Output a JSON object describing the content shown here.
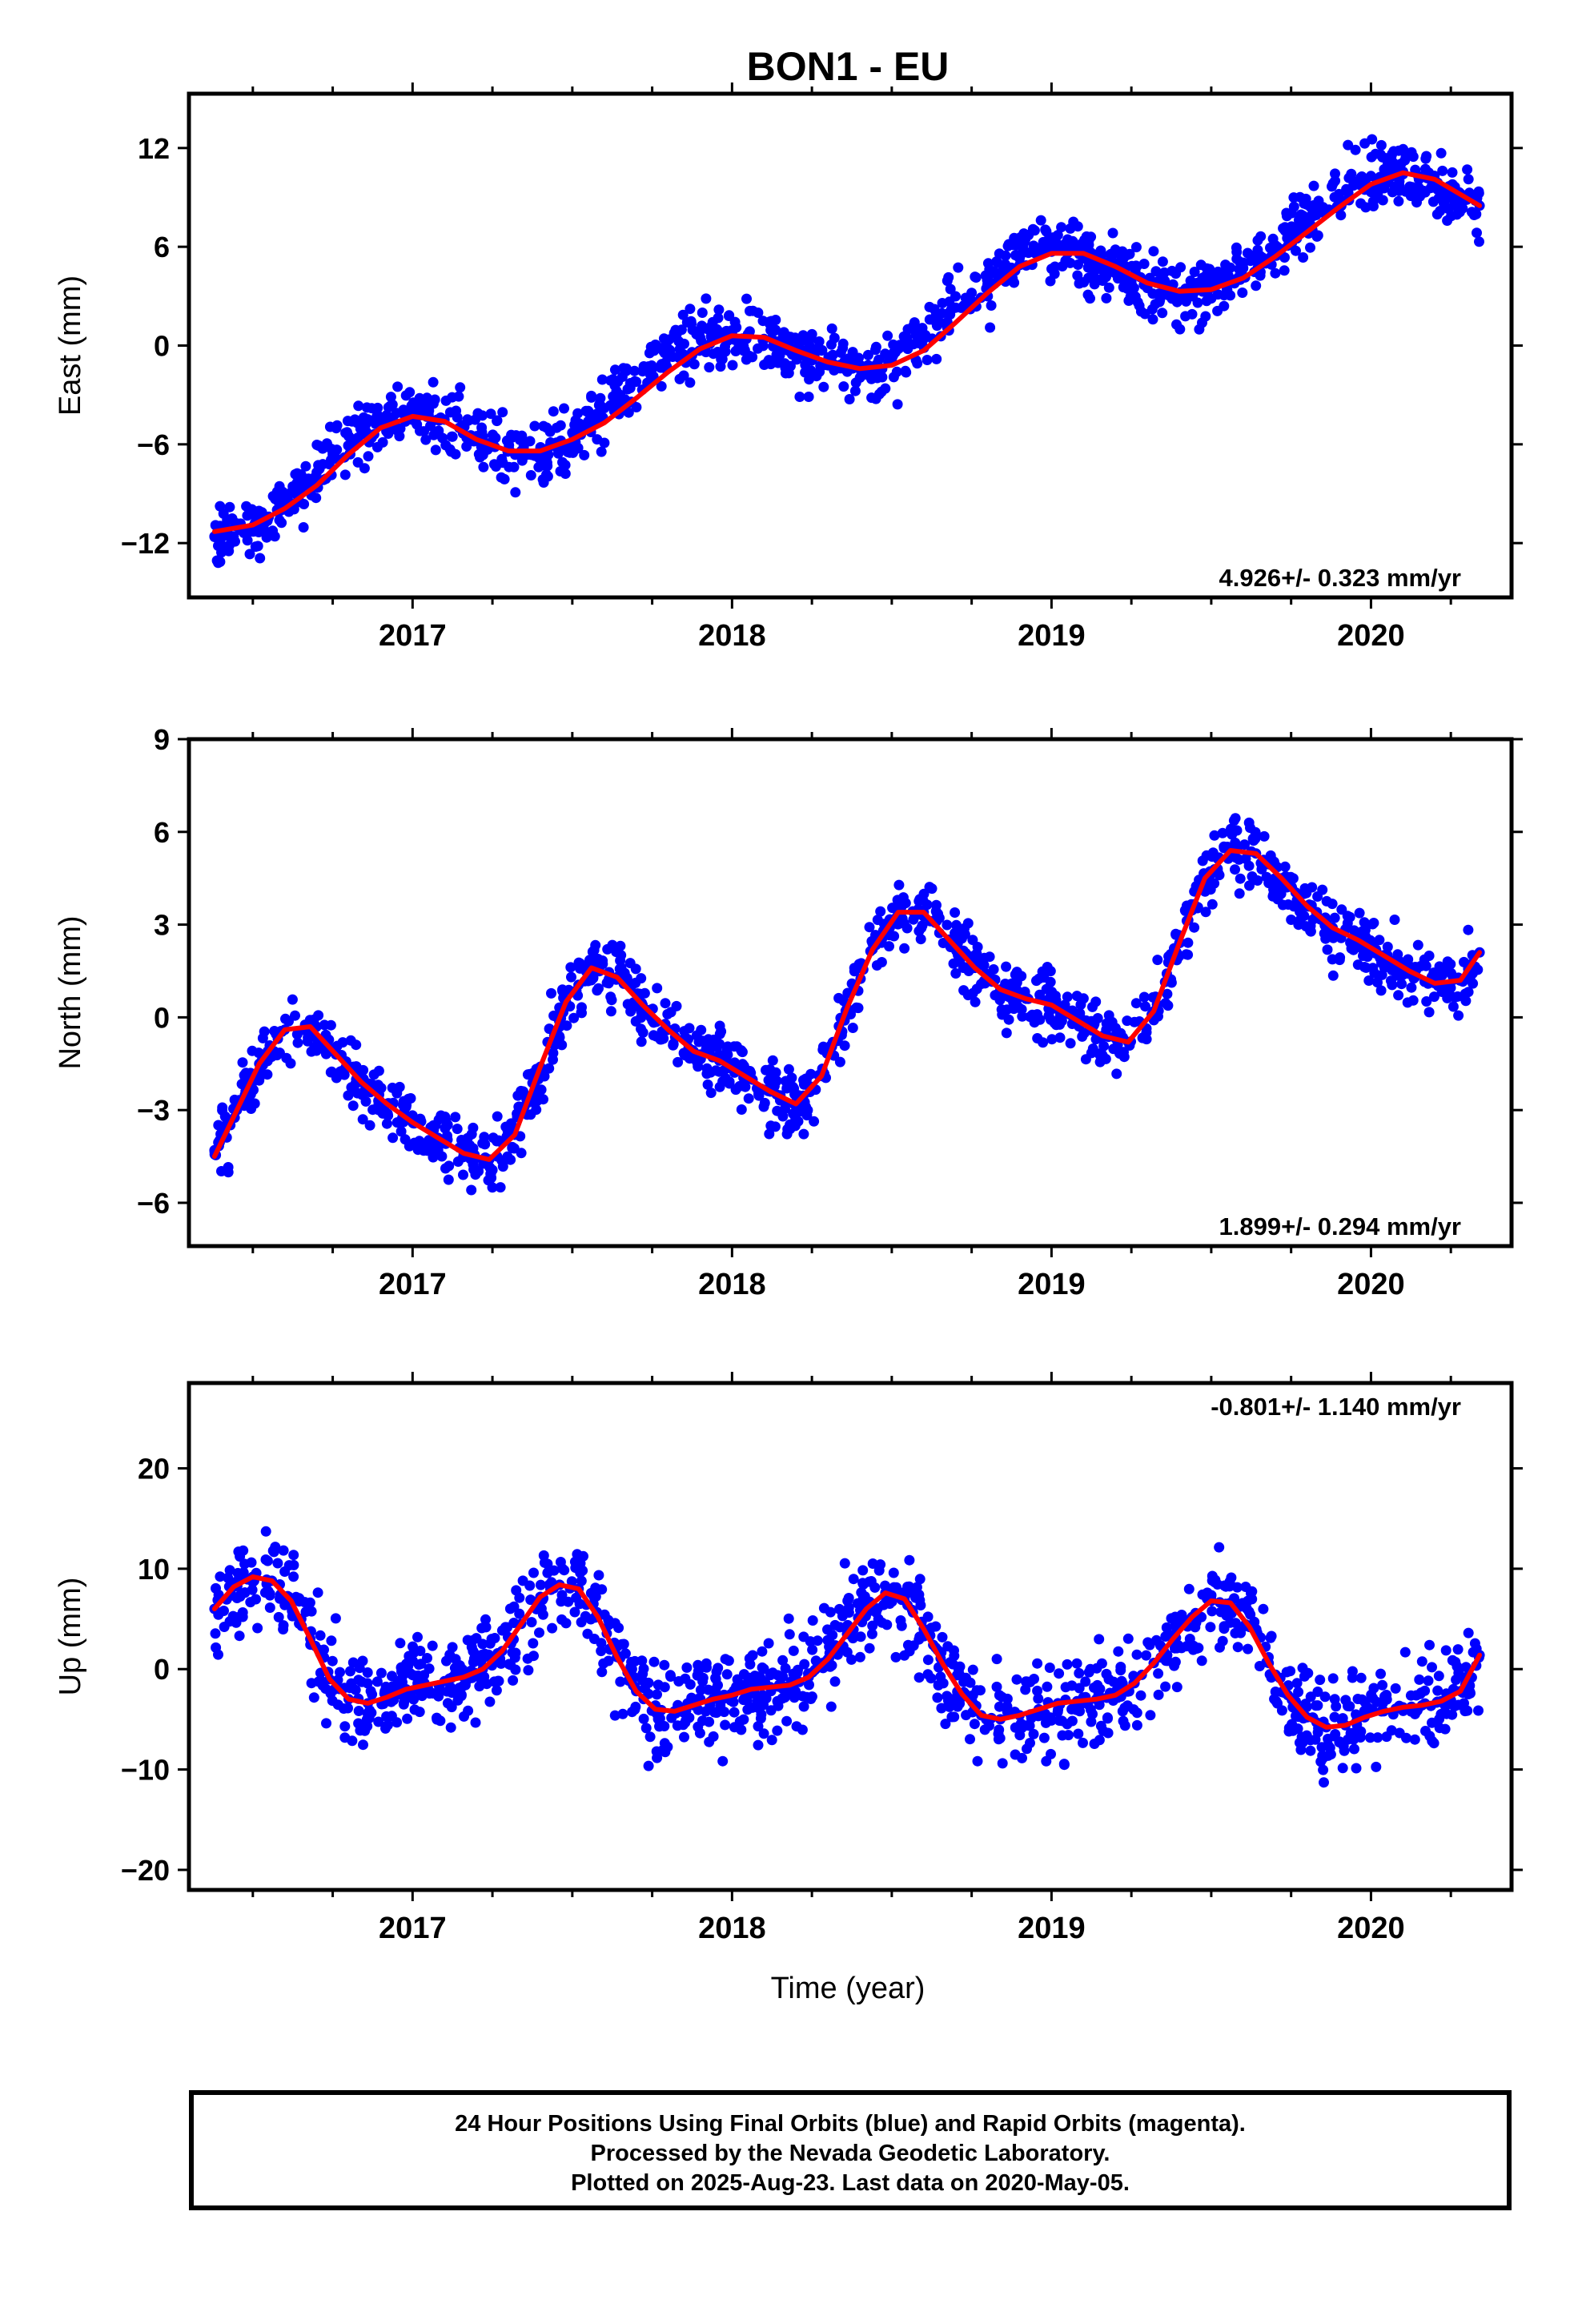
{
  "title": "BON1 - EU",
  "colors": {
    "final_orbits": "#0000ff",
    "fit": "#ff0000",
    "frame": "#000000"
  },
  "x_axis": {
    "label": "Time (year)",
    "ticks": [
      "2017",
      "2018",
      "2019",
      "2020"
    ]
  },
  "footer": {
    "line1": "24 Hour Positions Using Final Orbits (blue) and Rapid Orbits (magenta).",
    "line2": "Processed by the Nevada Geodetic Laboratory.",
    "line3": "Plotted on 2025-Aug-23. Last data on 2020-May-05."
  },
  "chart_data": [
    {
      "type": "scatter",
      "ylabel": "East (mm)",
      "rate_label": "4.926+/- 0.323 mm/yr",
      "xlim": [
        2016.3,
        2020.44
      ],
      "ylim": [
        -15.3,
        15.3
      ],
      "xticks": [
        2017,
        2018,
        2019,
        2020
      ],
      "yticks": [
        -12,
        -6,
        0,
        6,
        12
      ],
      "series": [
        {
          "type": "scatter",
          "x": [
            2016.38,
            2016.42,
            2016.46,
            2016.5,
            2016.55,
            2016.6,
            2016.65,
            2016.7,
            2016.75,
            2016.8,
            2016.85,
            2016.9,
            2016.95,
            2017.0,
            2017.05,
            2017.1,
            2017.15,
            2017.2,
            2017.25,
            2017.3,
            2017.35,
            2017.4,
            2017.45,
            2017.5,
            2017.55,
            2017.6,
            2017.65,
            2017.7,
            2017.75,
            2017.8,
            2017.85,
            2017.9,
            2017.95,
            2018.0,
            2018.05,
            2018.1,
            2018.15,
            2018.2,
            2018.25,
            2018.3,
            2018.35,
            2018.4,
            2018.45,
            2018.5,
            2018.55,
            2018.6,
            2018.65,
            2018.7,
            2018.75,
            2018.8,
            2018.85,
            2018.9,
            2018.95,
            2019.0,
            2019.05,
            2019.1,
            2019.15,
            2019.2,
            2019.25,
            2019.3,
            2019.35,
            2019.4,
            2019.45,
            2019.5,
            2019.55,
            2019.6,
            2019.65,
            2019.7,
            2019.75,
            2019.8,
            2019.85,
            2019.9,
            2019.95,
            2020.0,
            2020.05,
            2020.1,
            2020.15,
            2020.2,
            2020.25,
            2020.3,
            2020.34
          ],
          "y": [
            -11.6,
            -11.3,
            -11.2,
            -11.0,
            -10.4,
            -9.6,
            -8.7,
            -7.7,
            -6.6,
            -5.5,
            -4.8,
            -4.4,
            -4.1,
            -4.0,
            -4.2,
            -4.5,
            -5.0,
            -5.5,
            -6.0,
            -6.3,
            -6.4,
            -6.3,
            -5.9,
            -5.3,
            -4.6,
            -3.8,
            -3.0,
            -2.2,
            -1.4,
            -0.6,
            0.1,
            0.5,
            0.7,
            0.8,
            0.7,
            0.4,
            0.0,
            -0.5,
            -0.9,
            -1.2,
            -1.4,
            -1.4,
            -1.2,
            -0.8,
            -0.2,
            0.5,
            1.4,
            2.3,
            3.2,
            4.1,
            4.8,
            5.3,
            5.6,
            5.7,
            5.6,
            5.3,
            4.9,
            4.4,
            3.9,
            3.5,
            3.3,
            3.2,
            3.3,
            3.6,
            4.1,
            4.7,
            5.4,
            6.1,
            6.9,
            7.7,
            8.4,
            9.2,
            9.9,
            10.3,
            10.5,
            10.4,
            10.1,
            9.7,
            9.3,
            8.9,
            8.5
          ]
        },
        {
          "type": "line",
          "x": [
            2016.38,
            2016.5,
            2016.6,
            2016.7,
            2016.8,
            2016.9,
            2017.0,
            2017.1,
            2017.2,
            2017.3,
            2017.4,
            2017.5,
            2017.6,
            2017.7,
            2017.8,
            2017.9,
            2018.0,
            2018.1,
            2018.2,
            2018.3,
            2018.4,
            2018.5,
            2018.6,
            2018.7,
            2018.8,
            2018.9,
            2019.0,
            2019.1,
            2019.2,
            2019.3,
            2019.4,
            2019.5,
            2019.6,
            2019.7,
            2019.8,
            2019.9,
            2020.0,
            2020.1,
            2020.2,
            2020.34
          ],
          "y": [
            -11.3,
            -10.9,
            -9.9,
            -8.5,
            -6.6,
            -5.0,
            -4.3,
            -4.6,
            -5.7,
            -6.4,
            -6.4,
            -5.7,
            -4.7,
            -3.2,
            -1.6,
            -0.2,
            0.6,
            0.5,
            -0.3,
            -1.0,
            -1.4,
            -1.2,
            -0.3,
            1.4,
            3.2,
            4.8,
            5.6,
            5.6,
            4.8,
            3.8,
            3.3,
            3.4,
            4.1,
            5.4,
            6.9,
            8.4,
            9.8,
            10.5,
            10.1,
            8.5
          ]
        }
      ]
    },
    {
      "type": "scatter",
      "ylabel": "North (mm)",
      "rate_label": "1.899+/- 0.294 mm/yr",
      "xlim": [
        2016.3,
        2020.44
      ],
      "ylim": [
        -7.4,
        9.0
      ],
      "xticks": [
        2017,
        2018,
        2019,
        2020
      ],
      "yticks": [
        -6,
        -3,
        0,
        3,
        6,
        9
      ],
      "series": [
        {
          "type": "scatter",
          "x": [
            2016.38,
            2016.45,
            2016.52,
            2016.6,
            2016.68,
            2016.76,
            2016.84,
            2016.92,
            2017.0,
            2017.08,
            2017.16,
            2017.24,
            2017.32,
            2017.4,
            2017.48,
            2017.56,
            2017.64,
            2017.72,
            2017.8,
            2017.88,
            2017.96,
            2018.04,
            2018.12,
            2018.2,
            2018.28,
            2018.36,
            2018.44,
            2018.52,
            2018.6,
            2018.68,
            2018.76,
            2018.84,
            2018.92,
            2019.0,
            2019.08,
            2019.16,
            2019.24,
            2019.32,
            2019.4,
            2019.48,
            2019.56,
            2019.64,
            2019.72,
            2019.8,
            2019.88,
            2019.96,
            2020.04,
            2020.12,
            2020.2,
            2020.28,
            2020.34
          ],
          "y": [
            -4.3,
            -3.0,
            -1.5,
            -0.4,
            -0.3,
            -1.2,
            -2.1,
            -2.8,
            -3.4,
            -3.9,
            -4.4,
            -4.6,
            -3.8,
            -1.6,
            0.5,
            1.6,
            1.3,
            0.4,
            -0.4,
            -1.1,
            -1.4,
            -1.9,
            -2.4,
            -2.8,
            -1.9,
            0.3,
            2.2,
            3.4,
            3.4,
            2.5,
            1.6,
            0.9,
            0.6,
            0.4,
            -0.1,
            -0.6,
            -0.8,
            0.2,
            2.4,
            4.5,
            5.4,
            5.3,
            4.5,
            3.6,
            2.9,
            2.5,
            2.0,
            1.5,
            1.1,
            1.2,
            2.1
          ]
        },
        {
          "type": "line",
          "x": [
            2016.38,
            2016.45,
            2016.52,
            2016.6,
            2016.68,
            2016.76,
            2016.84,
            2016.92,
            2017.0,
            2017.08,
            2017.16,
            2017.24,
            2017.32,
            2017.4,
            2017.48,
            2017.56,
            2017.64,
            2017.72,
            2017.8,
            2017.88,
            2017.96,
            2018.04,
            2018.12,
            2018.2,
            2018.28,
            2018.36,
            2018.44,
            2018.52,
            2018.6,
            2018.68,
            2018.76,
            2018.84,
            2018.92,
            2019.0,
            2019.08,
            2019.16,
            2019.24,
            2019.32,
            2019.4,
            2019.48,
            2019.56,
            2019.64,
            2019.72,
            2019.8,
            2019.88,
            2019.96,
            2020.04,
            2020.12,
            2020.2,
            2020.28,
            2020.34
          ],
          "y": [
            -4.5,
            -3.0,
            -1.5,
            -0.4,
            -0.3,
            -1.2,
            -2.1,
            -2.8,
            -3.4,
            -3.9,
            -4.4,
            -4.6,
            -3.8,
            -1.6,
            0.5,
            1.6,
            1.3,
            0.4,
            -0.4,
            -1.1,
            -1.4,
            -1.9,
            -2.4,
            -2.8,
            -1.9,
            0.3,
            2.2,
            3.4,
            3.4,
            2.5,
            1.6,
            0.9,
            0.6,
            0.4,
            -0.1,
            -0.6,
            -0.8,
            0.2,
            2.4,
            4.5,
            5.4,
            5.3,
            4.5,
            3.6,
            2.9,
            2.5,
            2.0,
            1.5,
            1.1,
            1.2,
            2.1
          ]
        }
      ]
    },
    {
      "type": "scatter",
      "ylabel": "Up (mm)",
      "rate_label": "-0.801+/- 1.140 mm/yr",
      "xlim": [
        2016.3,
        2020.44
      ],
      "ylim": [
        -22.0,
        28.5
      ],
      "xticks": [
        2017,
        2018,
        2019,
        2020
      ],
      "yticks": [
        -20,
        -10,
        0,
        10,
        20
      ],
      "series": [
        {
          "type": "scatter",
          "x": [
            2016.38,
            2016.44,
            2016.5,
            2016.56,
            2016.62,
            2016.68,
            2016.74,
            2016.8,
            2016.86,
            2016.92,
            2016.98,
            2017.04,
            2017.1,
            2017.16,
            2017.22,
            2017.28,
            2017.34,
            2017.4,
            2017.46,
            2017.52,
            2017.58,
            2017.64,
            2017.7,
            2017.76,
            2017.82,
            2017.88,
            2017.94,
            2018.0,
            2018.06,
            2018.12,
            2018.18,
            2018.24,
            2018.3,
            2018.36,
            2018.42,
            2018.48,
            2018.54,
            2018.6,
            2018.66,
            2018.72,
            2018.78,
            2018.84,
            2018.9,
            2018.96,
            2019.02,
            2019.08,
            2019.14,
            2019.2,
            2019.26,
            2019.32,
            2019.38,
            2019.44,
            2019.5,
            2019.56,
            2019.62,
            2019.68,
            2019.74,
            2019.8,
            2019.86,
            2019.92,
            2019.98,
            2020.04,
            2020.1,
            2020.16,
            2020.22,
            2020.28,
            2020.34
          ],
          "y": [
            6.0,
            8.2,
            9.2,
            8.8,
            6.8,
            3.0,
            -1.0,
            -3.0,
            -3.4,
            -2.8,
            -2.0,
            -1.6,
            -1.2,
            -0.8,
            0.0,
            1.8,
            4.5,
            7.2,
            8.4,
            8.0,
            5.2,
            1.2,
            -2.2,
            -4.0,
            -4.2,
            -3.6,
            -3.0,
            -2.6,
            -2.0,
            -1.8,
            -1.6,
            -0.8,
            1.0,
            3.5,
            6.0,
            7.6,
            7.0,
            4.0,
            0.5,
            -2.5,
            -4.6,
            -5.0,
            -4.6,
            -4.0,
            -3.4,
            -3.2,
            -3.0,
            -2.6,
            -1.4,
            0.6,
            3.0,
            5.2,
            6.8,
            6.6,
            4.2,
            0.6,
            -2.6,
            -4.8,
            -5.8,
            -5.6,
            -4.8,
            -4.2,
            -3.8,
            -3.6,
            -3.2,
            -2.2,
            1.4
          ]
        },
        {
          "type": "line",
          "x": [
            2016.38,
            2016.44,
            2016.5,
            2016.56,
            2016.62,
            2016.68,
            2016.74,
            2016.8,
            2016.86,
            2016.92,
            2016.98,
            2017.04,
            2017.1,
            2017.16,
            2017.22,
            2017.28,
            2017.34,
            2017.4,
            2017.46,
            2017.52,
            2017.58,
            2017.64,
            2017.7,
            2017.76,
            2017.82,
            2017.88,
            2017.94,
            2018.0,
            2018.06,
            2018.12,
            2018.18,
            2018.24,
            2018.3,
            2018.36,
            2018.42,
            2018.48,
            2018.54,
            2018.6,
            2018.66,
            2018.72,
            2018.78,
            2018.84,
            2018.9,
            2018.96,
            2019.02,
            2019.08,
            2019.14,
            2019.2,
            2019.26,
            2019.32,
            2019.38,
            2019.44,
            2019.5,
            2019.56,
            2019.62,
            2019.68,
            2019.74,
            2019.8,
            2019.86,
            2019.92,
            2019.98,
            2020.04,
            2020.1,
            2020.16,
            2020.22,
            2020.28,
            2020.34
          ],
          "y": [
            6.0,
            8.2,
            9.2,
            8.8,
            6.8,
            3.0,
            -1.0,
            -3.0,
            -3.4,
            -2.8,
            -2.0,
            -1.6,
            -1.2,
            -0.8,
            0.0,
            1.8,
            4.5,
            7.2,
            8.4,
            8.0,
            5.2,
            1.2,
            -2.2,
            -4.0,
            -4.2,
            -3.6,
            -3.0,
            -2.6,
            -2.0,
            -1.8,
            -1.6,
            -0.8,
            1.0,
            3.5,
            6.0,
            7.6,
            7.0,
            4.0,
            0.5,
            -2.5,
            -4.6,
            -5.0,
            -4.6,
            -4.0,
            -3.4,
            -3.2,
            -3.0,
            -2.6,
            -1.4,
            0.6,
            3.0,
            5.2,
            6.8,
            6.6,
            4.2,
            0.6,
            -2.6,
            -4.8,
            -5.8,
            -5.6,
            -4.8,
            -4.2,
            -3.8,
            -3.6,
            -3.2,
            -2.2,
            1.4
          ]
        }
      ]
    }
  ]
}
